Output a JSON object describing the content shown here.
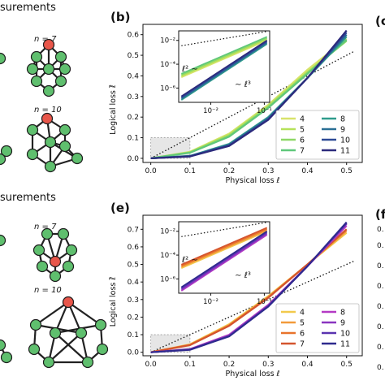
{
  "left_panels": {
    "top_header": "surements",
    "bottom_header": "surements",
    "top_n7": "n = 7",
    "top_n10": "n = 10",
    "bottom_n7": "n = 7",
    "bottom_n10": "n = 10",
    "node_color": "#5fbf6e",
    "root_color": "#e8564a"
  },
  "right_panel_labels": {
    "top": "(c",
    "bottom": "(f"
  },
  "right_edge_ticks": [
    "0.",
    "0.",
    "0.",
    "0.",
    "0.",
    "0.",
    "0.",
    "0."
  ],
  "chart_data": [
    {
      "type": "line",
      "panel_label": "(b)",
      "xlabel": "Physical loss ℓ",
      "ylabel": "Logical loss ℓ̄",
      "xlim": [
        -0.02,
        0.54
      ],
      "ylim": [
        -0.02,
        0.65
      ],
      "xticks": [
        "0.0",
        "0.1",
        "0.2",
        "0.3",
        "0.4",
        "0.5"
      ],
      "yticks": [
        "0.0",
        "0.1",
        "0.2",
        "0.3",
        "0.4",
        "0.5",
        "0.6"
      ],
      "legend_position": "lower-right",
      "inset": {
        "xscale": "log",
        "yscale": "log",
        "xticks": [
          "10⁻²",
          "10⁻¹"
        ],
        "yticks": [
          "10⁻²",
          "10⁻⁴",
          "10⁻⁶"
        ],
        "annotations": [
          "ℓ² ∼",
          "∼ ℓ³"
        ]
      },
      "series": [
        {
          "name": "4",
          "color": "#d8e36a",
          "x": [
            0,
            0.1,
            0.2,
            0.3,
            0.4,
            0.5
          ],
          "y": [
            0,
            0.032,
            0.12,
            0.26,
            0.43,
            0.58
          ]
        },
        {
          "name": "5",
          "color": "#b6e25a",
          "x": [
            0,
            0.1,
            0.2,
            0.3,
            0.4,
            0.5
          ],
          "y": [
            0,
            0.03,
            0.115,
            0.255,
            0.42,
            0.57
          ]
        },
        {
          "name": "6",
          "color": "#8ed866",
          "x": [
            0,
            0.1,
            0.2,
            0.3,
            0.4,
            0.5
          ],
          "y": [
            0,
            0.029,
            0.11,
            0.25,
            0.415,
            0.57
          ]
        },
        {
          "name": "7",
          "color": "#5fc77a",
          "x": [
            0,
            0.1,
            0.2,
            0.3,
            0.4,
            0.5
          ],
          "y": [
            0,
            0.027,
            0.105,
            0.245,
            0.41,
            0.575
          ]
        },
        {
          "name": "8",
          "color": "#2f9c8c",
          "x": [
            0,
            0.1,
            0.2,
            0.3,
            0.4,
            0.5
          ],
          "y": [
            0,
            0.012,
            0.07,
            0.2,
            0.39,
            0.59
          ]
        },
        {
          "name": "9",
          "color": "#2a6f95",
          "x": [
            0,
            0.1,
            0.2,
            0.3,
            0.4,
            0.5
          ],
          "y": [
            0,
            0.011,
            0.066,
            0.195,
            0.39,
            0.6
          ]
        },
        {
          "name": "10",
          "color": "#2d4a96",
          "x": [
            0,
            0.1,
            0.2,
            0.3,
            0.4,
            0.5
          ],
          "y": [
            0,
            0.01,
            0.063,
            0.19,
            0.39,
            0.61
          ]
        },
        {
          "name": "11",
          "color": "#2c2a7c",
          "x": [
            0,
            0.1,
            0.2,
            0.3,
            0.4,
            0.5
          ],
          "y": [
            0,
            0.009,
            0.06,
            0.187,
            0.39,
            0.62
          ]
        }
      ],
      "reference_line": {
        "x": [
          0,
          0.52
        ],
        "y": [
          0,
          0.52
        ],
        "style": "dotted"
      }
    },
    {
      "type": "line",
      "panel_label": "(e)",
      "xlabel": "Physical loss ℓ",
      "ylabel": "Logical loss ℓ̄",
      "xlim": [
        -0.02,
        0.54
      ],
      "ylim": [
        -0.02,
        0.78
      ],
      "xticks": [
        "0.0",
        "0.1",
        "0.2",
        "0.3",
        "0.4",
        "0.5"
      ],
      "yticks": [
        "0.0",
        "0.1",
        "0.2",
        "0.3",
        "0.4",
        "0.5",
        "0.6",
        "0.7"
      ],
      "legend_position": "lower-right",
      "inset": {
        "xscale": "log",
        "yscale": "log",
        "xticks": [
          "10⁻²",
          "10⁻¹"
        ],
        "yticks": [
          "10⁻²",
          "10⁻⁴",
          "10⁻⁶"
        ],
        "annotations": [
          "ℓ² ∼",
          "∼ ℓ³"
        ]
      },
      "series": [
        {
          "name": "4",
          "color": "#f2c94c",
          "x": [
            0,
            0.1,
            0.2,
            0.3,
            0.4,
            0.5
          ],
          "y": [
            0,
            0.045,
            0.16,
            0.32,
            0.5,
            0.68
          ]
        },
        {
          "name": "5",
          "color": "#f29a3a",
          "x": [
            0,
            0.1,
            0.2,
            0.3,
            0.4,
            0.5
          ],
          "y": [
            0,
            0.043,
            0.155,
            0.315,
            0.5,
            0.69
          ]
        },
        {
          "name": "6",
          "color": "#e8732c",
          "x": [
            0,
            0.1,
            0.2,
            0.3,
            0.4,
            0.5
          ],
          "y": [
            0,
            0.042,
            0.152,
            0.312,
            0.5,
            0.7
          ]
        },
        {
          "name": "7",
          "color": "#d4542e",
          "x": [
            0,
            0.1,
            0.2,
            0.3,
            0.4,
            0.5
          ],
          "y": [
            0,
            0.04,
            0.15,
            0.31,
            0.5,
            0.7
          ]
        },
        {
          "name": "8",
          "color": "#b43ac4",
          "x": [
            0,
            0.1,
            0.2,
            0.3,
            0.4,
            0.5
          ],
          "y": [
            0,
            0.018,
            0.1,
            0.27,
            0.49,
            0.72
          ]
        },
        {
          "name": "9",
          "color": "#8a35c0",
          "x": [
            0,
            0.1,
            0.2,
            0.3,
            0.4,
            0.5
          ],
          "y": [
            0,
            0.016,
            0.095,
            0.265,
            0.49,
            0.73
          ]
        },
        {
          "name": "10",
          "color": "#5a33b0",
          "x": [
            0,
            0.1,
            0.2,
            0.3,
            0.4,
            0.5
          ],
          "y": [
            0,
            0.015,
            0.092,
            0.262,
            0.49,
            0.735
          ]
        },
        {
          "name": "11",
          "color": "#2f2a8e",
          "x": [
            0,
            0.1,
            0.2,
            0.3,
            0.4,
            0.5
          ],
          "y": [
            0,
            0.014,
            0.09,
            0.26,
            0.49,
            0.74
          ]
        }
      ],
      "reference_line": {
        "x": [
          0,
          0.52
        ],
        "y": [
          0,
          0.52
        ],
        "style": "dotted"
      }
    }
  ]
}
